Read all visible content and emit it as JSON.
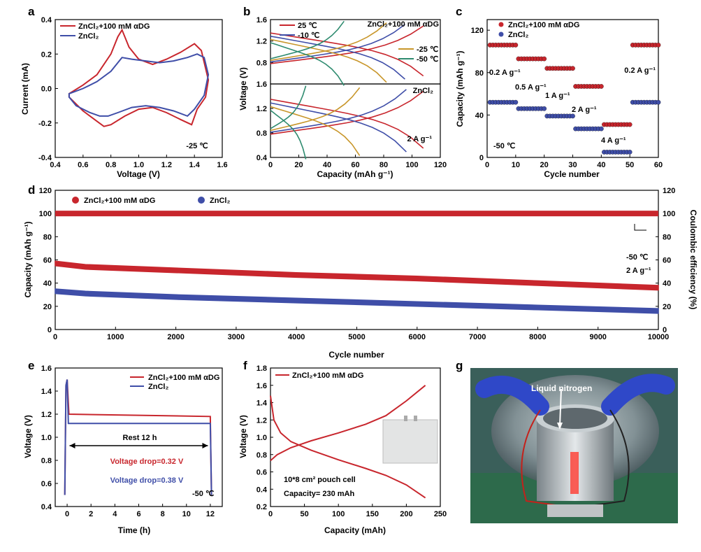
{
  "colors": {
    "red": "#c8262d",
    "blue": "#3f4ea8",
    "orange": "#c8962a",
    "green": "#2e8b6f"
  },
  "labels": {
    "a": "a",
    "b": "b",
    "c": "c",
    "d": "d",
    "e": "e",
    "f": "f",
    "g": "g"
  },
  "photo": {
    "label": "Liquid nitrogen"
  },
  "chart_data": [
    {
      "id": "a",
      "type": "line",
      "xlabel": "Voltage (V)",
      "ylabel": "Current (mA)",
      "xlim": [
        0.4,
        1.6
      ],
      "ylim": [
        -0.4,
        0.4
      ],
      "xticks": [
        "0.4",
        "0.6",
        "0.8",
        "1.0",
        "1.2",
        "1.4",
        "1.6"
      ],
      "yticks": [
        "-0.4",
        "-0.2",
        "0.0",
        "0.2",
        "0.4"
      ],
      "annotation": "-25 ℃",
      "series": [
        {
          "name": "ZnCl₂+100 mM αDG",
          "color": "red",
          "x": [
            0.5,
            0.6,
            0.7,
            0.8,
            0.85,
            0.88,
            0.93,
            1.0,
            1.1,
            1.2,
            1.3,
            1.4,
            1.45,
            1.5,
            1.48,
            1.42,
            1.38,
            1.3,
            1.2,
            1.1,
            1.0,
            0.9,
            0.8,
            0.75,
            0.7,
            0.6,
            0.5
          ],
          "y": [
            -0.03,
            0.02,
            0.08,
            0.2,
            0.3,
            0.34,
            0.24,
            0.17,
            0.14,
            0.17,
            0.21,
            0.26,
            0.22,
            0.05,
            -0.05,
            -0.12,
            -0.21,
            -0.18,
            -0.14,
            -0.11,
            -0.12,
            -0.16,
            -0.21,
            -0.22,
            -0.19,
            -0.13,
            -0.05
          ]
        },
        {
          "name": "ZnCl₂",
          "color": "blue",
          "x": [
            0.5,
            0.6,
            0.7,
            0.8,
            0.85,
            0.88,
            0.95,
            1.05,
            1.15,
            1.25,
            1.35,
            1.42,
            1.47,
            1.5,
            1.47,
            1.4,
            1.35,
            1.25,
            1.15,
            1.05,
            0.95,
            0.85,
            0.78,
            0.72,
            0.65,
            0.55,
            0.5
          ],
          "y": [
            -0.03,
            0.0,
            0.04,
            0.1,
            0.15,
            0.18,
            0.17,
            0.16,
            0.15,
            0.16,
            0.18,
            0.2,
            0.18,
            0.08,
            -0.04,
            -0.12,
            -0.16,
            -0.13,
            -0.11,
            -0.1,
            -0.11,
            -0.14,
            -0.16,
            -0.16,
            -0.14,
            -0.1,
            -0.05
          ]
        }
      ]
    },
    {
      "id": "b",
      "type": "line",
      "xlabel": "Capacity (mAh g⁻¹)",
      "ylabel": "Voltage (V)",
      "xlim": [
        0,
        120
      ],
      "ylim": [
        0.4,
        1.6
      ],
      "xticks": [
        "0",
        "20",
        "40",
        "60",
        "80",
        "100",
        "120"
      ],
      "yticks_top": [
        "0.8",
        "1.2",
        "1.6"
      ],
      "yticks_bottom": [
        "0.4",
        "0.8",
        "1.2",
        "1.6"
      ],
      "top_label": "ZnCl₂+100 mM αDG",
      "bottom_label": "ZnCl₂",
      "bottom_annotation": "2 A g⁻¹",
      "legend": [
        "25 ℃",
        "-10 ℃",
        "-25 ℃",
        "-50 ℃"
      ],
      "top_caps": [
        108,
        95,
        82,
        52
      ],
      "bottom_caps": [
        108,
        96,
        63,
        25
      ],
      "series_colors": [
        "red",
        "blue",
        "orange",
        "green"
      ]
    },
    {
      "id": "c",
      "type": "scatter",
      "xlabel": "Cycle number",
      "ylabel": "Capacity (mAh g⁻¹)",
      "xlim": [
        0,
        60
      ],
      "ylim": [
        0,
        130
      ],
      "xticks": [
        "0",
        "10",
        "20",
        "30",
        "40",
        "50",
        "60"
      ],
      "yticks": [
        "0",
        "40",
        "80",
        "120"
      ],
      "legend": [
        "ZnCl₂+100 mM αDG",
        "ZnCl₂"
      ],
      "rate_labels": [
        "0.2 A g⁻¹",
        "0.5 A g⁻¹",
        "1 A g⁻¹",
        "2 A g⁻¹",
        "4 A g⁻¹",
        "0.2 A g⁻¹"
      ],
      "annotation": "-50 ℃",
      "red_levels": [
        106,
        93,
        84,
        67,
        31,
        106
      ],
      "blue_levels": [
        52,
        46,
        39,
        27,
        5,
        52
      ]
    },
    {
      "id": "d",
      "type": "scatter",
      "xlabel": "Cycle number",
      "ylabel": "Capacity (mAh g⁻¹)",
      "ylabel_right": "Coulombic efficiency (%)",
      "xlim": [
        0,
        10000
      ],
      "ylim": [
        0,
        120
      ],
      "xticks": [
        "0",
        "1000",
        "2000",
        "3000",
        "4000",
        "5000",
        "6000",
        "7000",
        "8000",
        "9000",
        "10000"
      ],
      "yticks": [
        "0",
        "20",
        "40",
        "60",
        "80",
        "100",
        "120"
      ],
      "legend": [
        "ZnCl₂+100 mM αDG",
        "ZnCl₂"
      ],
      "annotation1": "-50 ℃",
      "annotation2": "2 A g⁻¹",
      "red_capacity": {
        "x": [
          0,
          500,
          2000,
          4000,
          6000,
          8000,
          10000
        ],
        "y": [
          57,
          54,
          51,
          47,
          44,
          40,
          36
        ]
      },
      "blue_capacity": {
        "x": [
          0,
          500,
          2000,
          4000,
          6000,
          8000,
          10000
        ],
        "y": [
          33,
          31,
          28,
          25,
          22,
          19,
          16
        ]
      },
      "ce": 100
    },
    {
      "id": "e",
      "type": "line",
      "xlabel": "Time (h)",
      "ylabel": "Voltage (V)",
      "xlim": [
        -1,
        13
      ],
      "ylim": [
        0.4,
        1.6
      ],
      "xticks": [
        "0",
        "2",
        "4",
        "6",
        "8",
        "10",
        "12"
      ],
      "yticks": [
        "0.4",
        "0.6",
        "0.8",
        "1.0",
        "1.2",
        "1.4",
        "1.6"
      ],
      "legend": [
        "ZnCl₂+100 mM αDG",
        "ZnCl₂"
      ],
      "rest_label": "Rest 12 h",
      "drop_red": "Voltage drop=0.32 V",
      "drop_blue": "Voltage drop=0.38 V",
      "annotation": "-50 ℃"
    },
    {
      "id": "f",
      "type": "line",
      "xlabel": "Capacity (mAh)",
      "ylabel": "Voltage (V)",
      "xlim": [
        0,
        250
      ],
      "ylim": [
        0.2,
        1.8
      ],
      "xticks": [
        "0",
        "50",
        "100",
        "150",
        "200",
        "250"
      ],
      "yticks": [
        "0.2",
        "0.4",
        "0.6",
        "0.8",
        "1.0",
        "1.2",
        "1.4",
        "1.6",
        "1.8"
      ],
      "legend": [
        "ZnCl₂+100 mM αDG"
      ],
      "annotation1": "10*8 cm² pouch cell",
      "annotation2": "Capacity= 230 mAh",
      "charge": {
        "x": [
          0,
          10,
          30,
          60,
          100,
          140,
          170,
          200,
          228
        ],
        "y": [
          0.73,
          0.8,
          0.88,
          0.96,
          1.05,
          1.15,
          1.25,
          1.42,
          1.6
        ]
      },
      "discharge": {
        "x": [
          0,
          5,
          15,
          30,
          60,
          100,
          140,
          170,
          200,
          228
        ],
        "y": [
          1.48,
          1.2,
          1.05,
          0.95,
          0.85,
          0.74,
          0.64,
          0.56,
          0.45,
          0.3
        ]
      }
    }
  ]
}
